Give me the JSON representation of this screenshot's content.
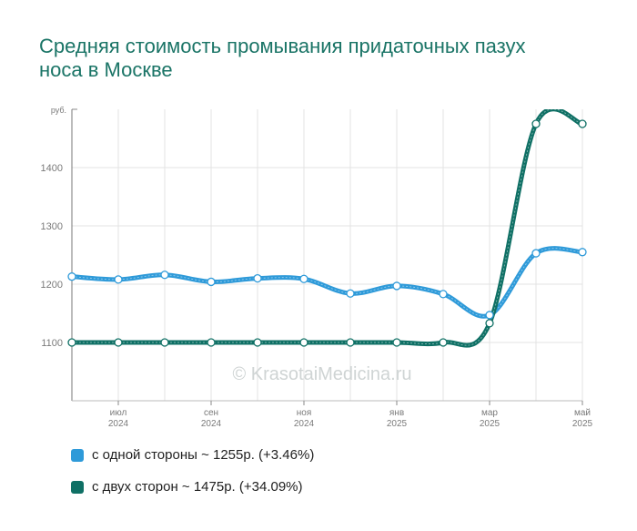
{
  "title": "Средняя стоимость промывания придаточных пазух носа в Москве",
  "watermark": "© KrasotaiMedicina.ru",
  "chart_data": {
    "type": "line",
    "title": "Средняя стоимость промывания придаточных пазух носа в Москве",
    "ylabel": "руб.",
    "ylim": [
      1000,
      1500
    ],
    "yticks": [
      1100,
      1200,
      1300,
      1400
    ],
    "grid": true,
    "x_ticks": [
      {
        "month": "июл",
        "year": "2024",
        "index": 1
      },
      {
        "month": "сен",
        "year": "2024",
        "index": 3
      },
      {
        "month": "ноя",
        "year": "2024",
        "index": 5
      },
      {
        "month": "янв",
        "year": "2025",
        "index": 7
      },
      {
        "month": "мар",
        "year": "2025",
        "index": 9
      },
      {
        "month": "май",
        "year": "2025",
        "index": 11
      }
    ],
    "x": [
      "2024-06",
      "2024-07",
      "2024-08",
      "2024-09",
      "2024-10",
      "2024-11",
      "2024-12",
      "2025-01",
      "2025-02",
      "2025-03",
      "2025-04",
      "2025-05"
    ],
    "series": [
      {
        "name": "с одной стороны",
        "color": "#2e9ad9",
        "values": [
          1213,
          1208,
          1216,
          1204,
          1210,
          1209,
          1184,
          1197,
          1183,
          1147,
          1253,
          1255
        ]
      },
      {
        "name": "с двух сторон",
        "color": "#0f7065",
        "values": [
          1100,
          1100,
          1100,
          1100,
          1100,
          1100,
          1100,
          1100,
          1100,
          1133,
          1475,
          1475
        ]
      }
    ],
    "legend_position": "bottom-left"
  },
  "legend": [
    {
      "label": "с одной стороны ~ 1255р. (+3.46%)",
      "color": "#2e9ad9"
    },
    {
      "label": "с двух сторон ~ 1475р. (+34.09%)",
      "color": "#0f7065"
    }
  ]
}
